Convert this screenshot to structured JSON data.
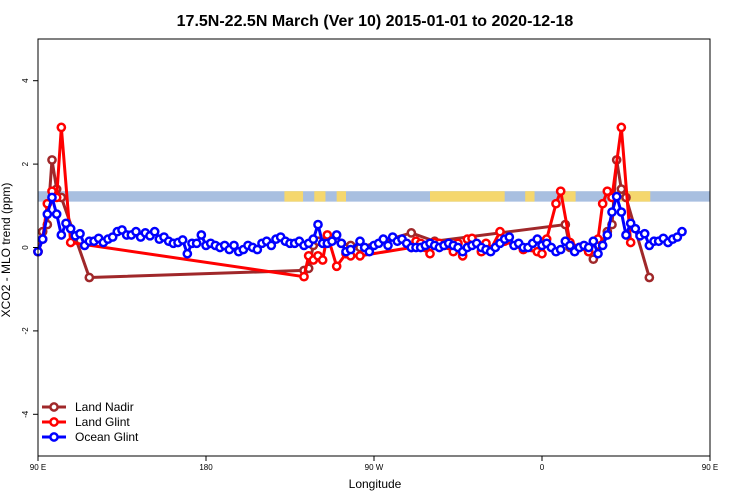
{
  "chart_data": {
    "type": "line",
    "title": "17.5N-22.5N March (Ver 10)   2015-01-01 to 2020-12-18",
    "xlabel": "Longitude",
    "ylabel": "XCO2 - MLO trend (ppm)",
    "xlim": [
      90,
      450
    ],
    "ylim": [
      -5,
      5
    ],
    "x_ticks": [
      {
        "value": 90,
        "label": "90 E"
      },
      {
        "value": 180,
        "label": "180"
      },
      {
        "value": 270,
        "label": "90 W"
      },
      {
        "value": 360,
        "label": "0"
      },
      {
        "value": 450,
        "label": "90 E"
      },
      {
        "value": 540,
        "label": "180"
      }
    ],
    "y_ticks": [
      {
        "value": -4,
        "label": "-4"
      },
      {
        "value": -2,
        "label": "-2"
      },
      {
        "value": 0,
        "label": "0"
      },
      {
        "value": 2,
        "label": "2"
      },
      {
        "value": 4,
        "label": "4"
      }
    ],
    "grid": false,
    "legend_position": "bottom-left",
    "land_mask": {
      "y_range": [
        1.1,
        1.35
      ],
      "ocean_color": "#a8bfe0",
      "land_color": "#f5d76e",
      "land_segments": [
        [
          222,
          232
        ],
        [
          238,
          244
        ],
        [
          250,
          255
        ],
        [
          300,
          340
        ],
        [
          351,
          356
        ],
        [
          371,
          378
        ],
        [
          402,
          418
        ]
      ]
    },
    "series": [
      {
        "name": "Land Nadir",
        "color": "#a0282a",
        "points": [
          [
            90,
            -0.1
          ],
          [
            92.5,
            0.38
          ],
          [
            95,
            0.55
          ],
          [
            97.5,
            2.1
          ],
          [
            100,
            1.4
          ],
          [
            102.5,
            1.2
          ],
          [
            117.5,
            -0.72
          ],
          [
            232.5,
            -0.55
          ],
          [
            235,
            -0.5
          ],
          [
            237.5,
            0.05
          ],
          [
            240,
            0.15
          ],
          [
            245,
            0.2
          ],
          [
            252.5,
            0.1
          ],
          [
            257.5,
            0.05
          ],
          [
            262.5,
            0.0
          ],
          [
            290,
            0.35
          ],
          [
            302.5,
            0.15
          ],
          [
            372.5,
            0.55
          ],
          [
            375,
            0.0
          ],
          [
            380,
            0.0
          ],
          [
            385,
            -0.1
          ],
          [
            387.5,
            -0.28
          ],
          [
            395,
            0.38
          ],
          [
            397.5,
            0.55
          ],
          [
            400,
            2.1
          ],
          [
            402.5,
            1.4
          ],
          [
            405,
            1.2
          ],
          [
            417.5,
            -0.72
          ]
        ]
      },
      {
        "name": "Land Glint",
        "color": "#ff0000",
        "points": [
          [
            90,
            -0.1
          ],
          [
            92.5,
            0.2
          ],
          [
            95,
            1.05
          ],
          [
            97.5,
            1.35
          ],
          [
            100,
            1.2
          ],
          [
            102.5,
            2.88
          ],
          [
            107.5,
            0.12
          ],
          [
            232.5,
            -0.7
          ],
          [
            235,
            -0.2
          ],
          [
            237.5,
            -0.3
          ],
          [
            240,
            -0.2
          ],
          [
            242.5,
            -0.3
          ],
          [
            245,
            0.3
          ],
          [
            250,
            -0.45
          ],
          [
            255,
            -0.15
          ],
          [
            257.5,
            -0.2
          ],
          [
            262.5,
            -0.2
          ],
          [
            290,
            0.0
          ],
          [
            292.5,
            0.15
          ],
          [
            295,
            0.1
          ],
          [
            297.5,
            0.0
          ],
          [
            300,
            -0.15
          ],
          [
            302.5,
            0.12
          ],
          [
            305,
            0.1
          ],
          [
            307.5,
            0.05
          ],
          [
            310,
            0.05
          ],
          [
            312.5,
            -0.1
          ],
          [
            315,
            0.1
          ],
          [
            317.5,
            -0.2
          ],
          [
            320,
            0.2
          ],
          [
            322.5,
            0.22
          ],
          [
            327.5,
            -0.1
          ],
          [
            330,
            0.1
          ],
          [
            332.5,
            -0.05
          ],
          [
            337.5,
            0.38
          ],
          [
            340,
            0.15
          ],
          [
            350,
            -0.05
          ],
          [
            357.5,
            -0.1
          ],
          [
            360,
            -0.15
          ],
          [
            362.5,
            0.2
          ],
          [
            367.5,
            1.05
          ],
          [
            370,
            1.35
          ],
          [
            375,
            0.12
          ],
          [
            380,
            0.0
          ],
          [
            385,
            -0.1
          ],
          [
            390,
            0.2
          ],
          [
            392.5,
            1.05
          ],
          [
            395,
            1.35
          ],
          [
            397.5,
            1.2
          ],
          [
            402.5,
            2.88
          ],
          [
            407.5,
            0.12
          ]
        ]
      },
      {
        "name": "Ocean Glint",
        "color": "#0000ff",
        "points": [
          [
            90,
            -0.1
          ],
          [
            92.5,
            0.2
          ],
          [
            95,
            0.8
          ],
          [
            97.5,
            1.2
          ],
          [
            100,
            0.8
          ],
          [
            102.5,
            0.3
          ],
          [
            105,
            0.58
          ],
          [
            107.5,
            0.45
          ],
          [
            110,
            0.28
          ],
          [
            112.5,
            0.33
          ],
          [
            115,
            0.05
          ],
          [
            117.5,
            0.15
          ],
          [
            120,
            0.15
          ],
          [
            122.5,
            0.22
          ],
          [
            125,
            0.12
          ],
          [
            127.5,
            0.2
          ],
          [
            130,
            0.25
          ],
          [
            132.5,
            0.38
          ],
          [
            135,
            0.42
          ],
          [
            137.5,
            0.3
          ],
          [
            140,
            0.3
          ],
          [
            142.5,
            0.38
          ],
          [
            145,
            0.25
          ],
          [
            147.5,
            0.35
          ],
          [
            150,
            0.28
          ],
          [
            152.5,
            0.38
          ],
          [
            155,
            0.2
          ],
          [
            157.5,
            0.25
          ],
          [
            160,
            0.15
          ],
          [
            162.5,
            0.1
          ],
          [
            165,
            0.12
          ],
          [
            167.5,
            0.18
          ],
          [
            170,
            -0.15
          ],
          [
            172.5,
            0.1
          ],
          [
            175,
            0.1
          ],
          [
            177.5,
            0.3
          ],
          [
            180,
            0.05
          ],
          [
            182.5,
            0.1
          ],
          [
            185,
            0.05
          ],
          [
            187.5,
            0.0
          ],
          [
            190,
            0.05
          ],
          [
            192.5,
            -0.05
          ],
          [
            195,
            0.05
          ],
          [
            197.5,
            -0.1
          ],
          [
            200,
            -0.05
          ],
          [
            202.5,
            0.05
          ],
          [
            205,
            0.0
          ],
          [
            207.5,
            -0.05
          ],
          [
            210,
            0.1
          ],
          [
            212.5,
            0.15
          ],
          [
            215,
            0.05
          ],
          [
            217.5,
            0.2
          ],
          [
            220,
            0.25
          ],
          [
            222.5,
            0.15
          ],
          [
            225,
            0.1
          ],
          [
            227.5,
            0.1
          ],
          [
            230,
            0.15
          ],
          [
            232.5,
            0.05
          ],
          [
            235,
            0.1
          ],
          [
            237.5,
            0.2
          ],
          [
            240,
            0.55
          ],
          [
            242.5,
            0.1
          ],
          [
            245,
            0.1
          ],
          [
            247.5,
            0.15
          ],
          [
            250,
            0.3
          ],
          [
            252.5,
            0.1
          ],
          [
            255,
            -0.1
          ],
          [
            257.5,
            -0.05
          ],
          [
            262.5,
            0.15
          ],
          [
            265,
            0.0
          ],
          [
            267.5,
            -0.1
          ],
          [
            270,
            0.05
          ],
          [
            272.5,
            0.1
          ],
          [
            275,
            0.2
          ],
          [
            277.5,
            0.05
          ],
          [
            280,
            0.25
          ],
          [
            282.5,
            0.15
          ],
          [
            285,
            0.2
          ],
          [
            287.5,
            0.1
          ],
          [
            290,
            0.0
          ],
          [
            292.5,
            0.0
          ],
          [
            295,
            0.0
          ],
          [
            297.5,
            0.05
          ],
          [
            300,
            0.1
          ],
          [
            302.5,
            0.05
          ],
          [
            305,
            0.0
          ],
          [
            307.5,
            0.05
          ],
          [
            310,
            0.1
          ],
          [
            312.5,
            0.05
          ],
          [
            315,
            0.0
          ],
          [
            317.5,
            -0.1
          ],
          [
            320,
            0.0
          ],
          [
            322.5,
            0.05
          ],
          [
            325,
            0.1
          ],
          [
            327.5,
            0.0
          ],
          [
            330,
            -0.05
          ],
          [
            332.5,
            -0.1
          ],
          [
            335,
            0.0
          ],
          [
            337.5,
            0.1
          ],
          [
            340,
            0.2
          ],
          [
            342.5,
            0.25
          ],
          [
            345,
            0.05
          ],
          [
            347.5,
            0.1
          ],
          [
            350,
            0.0
          ],
          [
            352.5,
            0.0
          ],
          [
            355,
            0.1
          ],
          [
            357.5,
            0.2
          ],
          [
            360,
            0.05
          ],
          [
            362.5,
            0.1
          ],
          [
            365,
            0.0
          ],
          [
            367.5,
            -0.1
          ],
          [
            370,
            -0.05
          ],
          [
            372.5,
            0.15
          ],
          [
            375,
            0.05
          ],
          [
            377.5,
            -0.1
          ],
          [
            380,
            0.0
          ],
          [
            382.5,
            0.05
          ],
          [
            385,
            0.0
          ],
          [
            387.5,
            0.15
          ],
          [
            390,
            -0.15
          ],
          [
            392.5,
            0.05
          ],
          [
            395,
            0.3
          ],
          [
            397.5,
            0.85
          ],
          [
            400,
            1.22
          ],
          [
            402.5,
            0.85
          ],
          [
            405,
            0.3
          ],
          [
            407.5,
            0.58
          ],
          [
            410,
            0.45
          ],
          [
            412.5,
            0.28
          ],
          [
            415,
            0.33
          ],
          [
            417.5,
            0.05
          ],
          [
            420,
            0.15
          ],
          [
            422.5,
            0.15
          ],
          [
            425,
            0.22
          ],
          [
            427.5,
            0.12
          ],
          [
            430,
            0.2
          ],
          [
            432.5,
            0.25
          ],
          [
            435,
            0.38
          ]
        ]
      }
    ]
  }
}
